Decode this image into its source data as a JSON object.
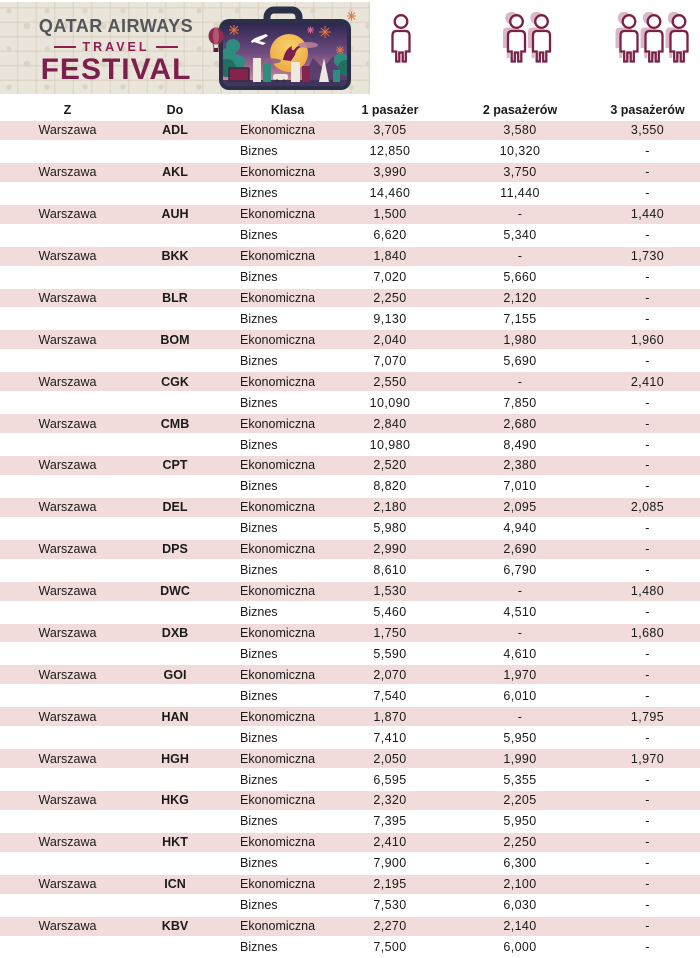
{
  "banner": {
    "logo": {
      "brand": "QATAR AIRWAYS",
      "middle": "TRAVEL",
      "title": "FESTIVAL"
    },
    "icons": {
      "one_passenger": "1-passenger-icon",
      "two_passengers": "2-passengers-icon",
      "three_passengers": "3-passengers-icon",
      "illustration": "travel-suitcase-illustration"
    }
  },
  "colors": {
    "brand_maroon": "#7d1f4d",
    "brand_gray": "#54565a",
    "icon_stroke": "#7b2147",
    "row_pink": "#f2dcdb",
    "banner_beige": "#eae5db",
    "suitcase_navy": "#2c2f48"
  },
  "table": {
    "headers": [
      "Z",
      "Do",
      "Klasa",
      "1 pasażer",
      "2 pasażerów",
      "3 pasażerów"
    ],
    "origin": "Warszawa",
    "class_labels": [
      "Ekonomiczna",
      "Biznes"
    ],
    "empty_value": "-",
    "destinations": [
      {
        "code": "ADL",
        "economy": [
          "3,705",
          "3,580",
          "3,550"
        ],
        "business": [
          "12,850",
          "10,320",
          "-"
        ]
      },
      {
        "code": "AKL",
        "economy": [
          "3,990",
          "3,750",
          "-"
        ],
        "business": [
          "14,460",
          "11,440",
          "-"
        ]
      },
      {
        "code": "AUH",
        "economy": [
          "1,500",
          "-",
          "1,440"
        ],
        "business": [
          "6,620",
          "5,340",
          "-"
        ]
      },
      {
        "code": "BKK",
        "economy": [
          "1,840",
          "-",
          "1,730"
        ],
        "business": [
          "7,020",
          "5,660",
          "-"
        ]
      },
      {
        "code": "BLR",
        "economy": [
          "2,250",
          "2,120",
          "-"
        ],
        "business": [
          "9,130",
          "7,155",
          "-"
        ]
      },
      {
        "code": "BOM",
        "economy": [
          "2,040",
          "1,980",
          "1,960"
        ],
        "business": [
          "7,070",
          "5,690",
          "-"
        ]
      },
      {
        "code": "CGK",
        "economy": [
          "2,550",
          "-",
          "2,410"
        ],
        "business": [
          "10,090",
          "7,850",
          "-"
        ]
      },
      {
        "code": "CMB",
        "economy": [
          "2,840",
          "2,680",
          "-"
        ],
        "business": [
          "10,980",
          "8,490",
          "-"
        ]
      },
      {
        "code": "CPT",
        "economy": [
          "2,520",
          "2,380",
          "-"
        ],
        "business": [
          "8,820",
          "7,010",
          "-"
        ]
      },
      {
        "code": "DEL",
        "economy": [
          "2,180",
          "2,095",
          "2,085"
        ],
        "business": [
          "5,980",
          "4,940",
          "-"
        ]
      },
      {
        "code": "DPS",
        "economy": [
          "2,990",
          "2,690",
          "-"
        ],
        "business": [
          "8,610",
          "6,790",
          "-"
        ]
      },
      {
        "code": "DWC",
        "economy": [
          "1,530",
          "-",
          "1,480"
        ],
        "business": [
          "5,460",
          "4,510",
          "-"
        ]
      },
      {
        "code": "DXB",
        "economy": [
          "1,750",
          "-",
          "1,680"
        ],
        "business": [
          "5,590",
          "4,610",
          "-"
        ]
      },
      {
        "code": "GOI",
        "economy": [
          "2,070",
          "1,970",
          "-"
        ],
        "business": [
          "7,540",
          "6,010",
          "-"
        ]
      },
      {
        "code": "HAN",
        "economy": [
          "1,870",
          "-",
          "1,795"
        ],
        "business": [
          "7,410",
          "5,950",
          "-"
        ]
      },
      {
        "code": "HGH",
        "economy": [
          "2,050",
          "1,990",
          "1,970"
        ],
        "business": [
          "6,595",
          "5,355",
          "-"
        ]
      },
      {
        "code": "HKG",
        "economy": [
          "2,320",
          "2,205",
          "-"
        ],
        "business": [
          "7,395",
          "5,950",
          "-"
        ]
      },
      {
        "code": "HKT",
        "economy": [
          "2,410",
          "2,250",
          "-"
        ],
        "business": [
          "7,900",
          "6,300",
          "-"
        ]
      },
      {
        "code": "ICN",
        "economy": [
          "2,195",
          "2,100",
          "-"
        ],
        "business": [
          "7,530",
          "6,030",
          "-"
        ]
      },
      {
        "code": "KBV",
        "economy": [
          "2,270",
          "2,140",
          "-"
        ],
        "business": [
          "7,500",
          "6,000",
          "-"
        ]
      }
    ]
  }
}
